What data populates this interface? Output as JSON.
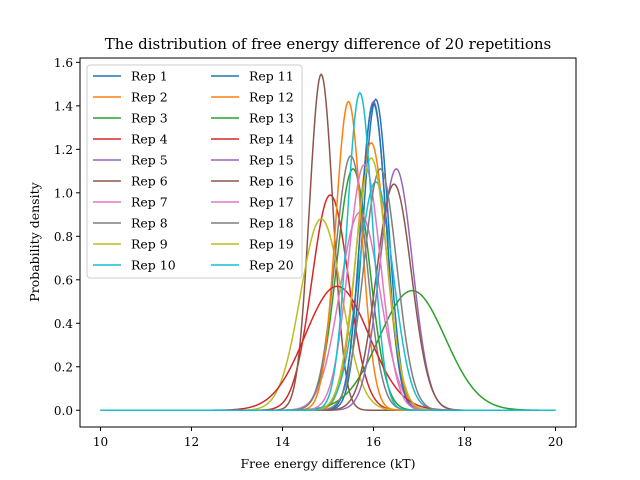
{
  "chart_data": {
    "type": "line",
    "title": "The distribution of free energy difference of 20 repetitions",
    "xlabel": "Free energy difference (kT)",
    "ylabel": "Probability density",
    "xlim": [
      9.55,
      20.45
    ],
    "ylim": [
      -0.077,
      1.62
    ],
    "xticks": [
      10,
      12,
      14,
      16,
      18,
      20
    ],
    "yticks": [
      0.0,
      0.2,
      0.4,
      0.6,
      0.8,
      1.0,
      1.2,
      1.4,
      1.6
    ],
    "x_range": [
      10,
      20
    ],
    "grid": false,
    "legend_position": "upper-left",
    "legend_columns": 2,
    "series": [
      {
        "name": "Rep 1",
        "color": "#1f77b4",
        "mean": 16.05,
        "peak_density": 1.43
      },
      {
        "name": "Rep 2",
        "color": "#ff7f0e",
        "mean": 15.95,
        "peak_density": 1.23
      },
      {
        "name": "Rep 3",
        "color": "#2ca02c",
        "mean": 15.55,
        "peak_density": 1.11
      },
      {
        "name": "Rep 4",
        "color": "#d62728",
        "mean": 15.05,
        "peak_density": 0.99
      },
      {
        "name": "Rep 5",
        "color": "#9467bd",
        "mean": 16.0,
        "peak_density": 1.42
      },
      {
        "name": "Rep 6",
        "color": "#8c564b",
        "mean": 14.85,
        "peak_density": 1.545
      },
      {
        "name": "Rep 7",
        "color": "#e377c2",
        "mean": 15.7,
        "peak_density": 0.91
      },
      {
        "name": "Rep 8",
        "color": "#7f7f7f",
        "mean": 15.5,
        "peak_density": 1.17
      },
      {
        "name": "Rep 9",
        "color": "#bcbd22",
        "mean": 14.85,
        "peak_density": 0.88
      },
      {
        "name": "Rep 10",
        "color": "#17becf",
        "mean": 16.05,
        "peak_density": 1.05
      },
      {
        "name": "Rep 11",
        "color": "#1f77b4",
        "mean": 16.0,
        "peak_density": 1.41
      },
      {
        "name": "Rep 12",
        "color": "#ff7f0e",
        "mean": 15.45,
        "peak_density": 1.42
      },
      {
        "name": "Rep 13",
        "color": "#2ca02c",
        "mean": 16.85,
        "peak_density": 0.55
      },
      {
        "name": "Rep 14",
        "color": "#d62728",
        "mean": 15.2,
        "peak_density": 0.57
      },
      {
        "name": "Rep 15",
        "color": "#9467bd",
        "mean": 16.5,
        "peak_density": 1.11
      },
      {
        "name": "Rep 16",
        "color": "#8c564b",
        "mean": 16.45,
        "peak_density": 1.04
      },
      {
        "name": "Rep 17",
        "color": "#e377c2",
        "mean": 15.8,
        "peak_density": 1.13
      },
      {
        "name": "Rep 18",
        "color": "#7f7f7f",
        "mean": 16.15,
        "peak_density": 1.11
      },
      {
        "name": "Rep 19",
        "color": "#bcbd22",
        "mean": 15.95,
        "peak_density": 1.16
      },
      {
        "name": "Rep 20",
        "color": "#17becf",
        "mean": 15.7,
        "peak_density": 1.46
      }
    ]
  }
}
